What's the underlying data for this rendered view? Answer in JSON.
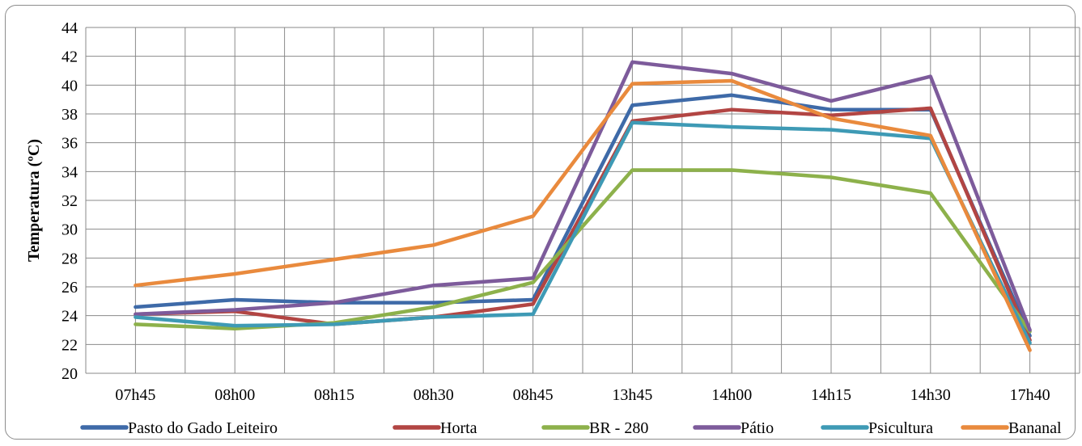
{
  "chart_data": {
    "type": "line",
    "title": "",
    "xlabel": "",
    "ylabel": "Temperatura (ºC)",
    "ylim": [
      20,
      44
    ],
    "ytick_step": 2,
    "grid": true,
    "legend_position": "bottom",
    "categories": [
      "07h45",
      "08h00",
      "08h15",
      "08h30",
      "08h45",
      "13h45",
      "14h00",
      "14h15",
      "14h30",
      "17h40"
    ],
    "series": [
      {
        "name": "Pasto do Gado Leiteiro",
        "color": "#3e6aa8",
        "values": [
          24.6,
          25.1,
          24.9,
          24.9,
          25.1,
          38.6,
          39.3,
          38.3,
          38.3,
          22.6
        ]
      },
      {
        "name": "Horta",
        "color": "#b24543",
        "values": [
          24.1,
          24.3,
          23.4,
          23.9,
          24.8,
          37.5,
          38.3,
          37.9,
          38.4,
          22.3
        ]
      },
      {
        "name": "BR - 280",
        "color": "#8db14b",
        "values": [
          23.4,
          23.1,
          23.5,
          24.6,
          26.3,
          34.1,
          34.1,
          33.6,
          32.5,
          22.9
        ]
      },
      {
        "name": "Pátio",
        "color": "#7d5b9b",
        "values": [
          24.1,
          24.4,
          24.9,
          26.1,
          26.6,
          41.6,
          40.8,
          38.9,
          40.6,
          23.0
        ]
      },
      {
        "name": "Psicultura",
        "color": "#3e9ab5",
        "values": [
          23.9,
          23.3,
          23.4,
          23.9,
          24.1,
          37.4,
          37.1,
          36.9,
          36.3,
          22.1
        ]
      },
      {
        "name": "Bananal",
        "color": "#e98a3d",
        "values": [
          26.1,
          26.9,
          27.9,
          28.9,
          30.9,
          40.1,
          40.3,
          37.7,
          36.5,
          21.6
        ]
      }
    ]
  }
}
